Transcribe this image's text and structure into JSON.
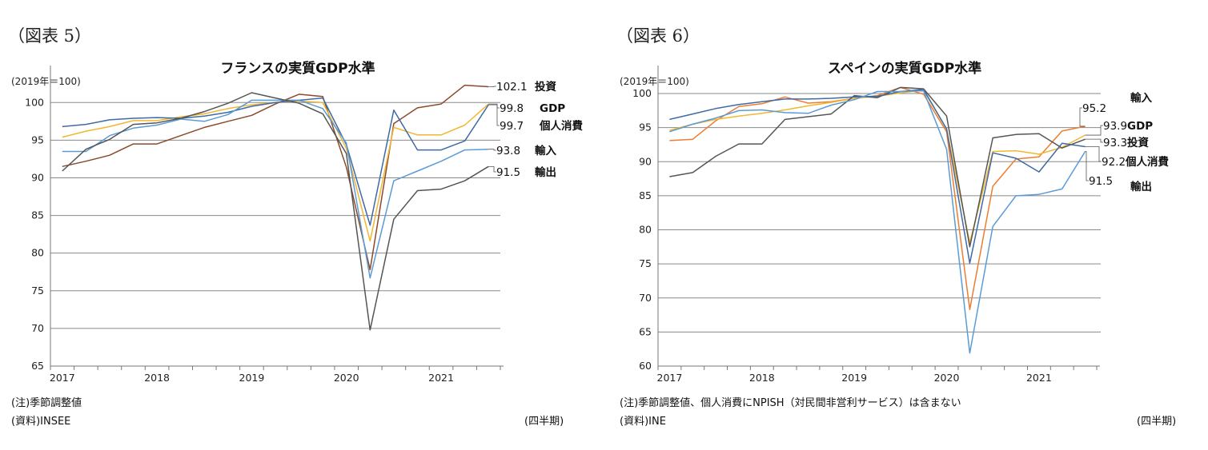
{
  "chart_data": [
    {
      "type": "line",
      "figure_label": "（図表 5）",
      "unit": "(2019年＝100)",
      "title": "フランスの実質GDP水準",
      "ylim": [
        65,
        103
      ],
      "yticks": [
        65,
        70,
        75,
        80,
        85,
        90,
        95,
        100
      ],
      "x_tick_labels": [
        "2017",
        "2018",
        "2019",
        "2020",
        "2021"
      ],
      "x": [
        "2017Q1",
        "2017Q2",
        "2017Q3",
        "2017Q4",
        "2018Q1",
        "2018Q2",
        "2018Q3",
        "2018Q4",
        "2019Q1",
        "2019Q2",
        "2019Q3",
        "2019Q4",
        "2020Q1",
        "2020Q2",
        "2020Q3",
        "2020Q4",
        "2021Q1",
        "2021Q2",
        "2021Q3"
      ],
      "grid": true,
      "series": [
        {
          "name": "投資",
          "color": "#8b4a2b",
          "values": [
            91.5,
            92.2,
            93.0,
            94.5,
            94.5,
            95.6,
            96.7,
            97.5,
            98.3,
            99.8,
            101.1,
            100.8,
            91.4,
            77.8,
            97.2,
            99.3,
            99.8,
            102.3,
            102.1
          ],
          "end_label": "102.1"
        },
        {
          "name": "GDP",
          "color": "#f2b731",
          "values": [
            95.4,
            96.2,
            96.8,
            97.6,
            97.6,
            98.1,
            98.5,
            99.2,
            99.7,
            100.0,
            100.2,
            100.0,
            93.9,
            81.6,
            96.7,
            95.7,
            95.7,
            97.0,
            99.8
          ],
          "end_label": "99.8"
        },
        {
          "name": "個人消費",
          "color": "#3f6aa6",
          "values": [
            96.8,
            97.1,
            97.7,
            97.9,
            98.0,
            97.9,
            98.2,
            98.7,
            99.5,
            100.0,
            100.3,
            100.6,
            94.4,
            83.7,
            99.0,
            93.7,
            93.7,
            94.9,
            99.7
          ],
          "end_label": "99.7"
        },
        {
          "name": "輸入",
          "color": "#5b9bd5",
          "values": [
            93.5,
            93.5,
            95.6,
            96.6,
            97.0,
            97.8,
            97.5,
            98.4,
            100.3,
            100.3,
            100.3,
            99.2,
            94.6,
            76.7,
            89.6,
            90.9,
            92.2,
            93.7,
            93.8
          ],
          "end_label": "93.8"
        },
        {
          "name": "輸出",
          "color": "#555555",
          "values": [
            90.9,
            93.8,
            95.1,
            97.1,
            97.3,
            97.9,
            98.8,
            99.9,
            101.3,
            100.6,
            99.9,
            98.5,
            93.2,
            69.8,
            84.5,
            88.3,
            88.5,
            89.6,
            91.5
          ],
          "end_label": "91.5"
        }
      ],
      "note": "(注)季節調整値",
      "source": "(資料)INSEE",
      "x_unit": "(四半期)"
    },
    {
      "type": "line",
      "figure_label": "（図表 6）",
      "unit": "(2019年＝100)",
      "title": "スペインの実質GDP水準",
      "ylim": [
        60,
        102
      ],
      "yticks": [
        60,
        65,
        70,
        75,
        80,
        85,
        90,
        95,
        100
      ],
      "x_tick_labels": [
        "2017",
        "2018",
        "2019",
        "2020",
        "2021"
      ],
      "x": [
        "2017Q1",
        "2017Q2",
        "2017Q3",
        "2017Q4",
        "2018Q1",
        "2018Q2",
        "2018Q3",
        "2018Q4",
        "2019Q1",
        "2019Q2",
        "2019Q3",
        "2019Q4",
        "2020Q1",
        "2020Q2",
        "2020Q3",
        "2020Q4",
        "2021Q1",
        "2021Q2",
        "2021Q3"
      ],
      "grid": true,
      "series": [
        {
          "name": "輸入",
          "color": "#ed7d31",
          "values": [
            93.1,
            93.3,
            96.0,
            98.1,
            98.5,
            99.5,
            98.6,
            98.8,
            99.3,
            99.7,
            100.9,
            99.9,
            94.4,
            68.3,
            86.4,
            90.4,
            90.7,
            94.5,
            95.2
          ],
          "end_label": "95.2"
        },
        {
          "name": "GDP",
          "color": "#f2b731",
          "values": [
            94.6,
            95.5,
            96.2,
            96.7,
            97.1,
            97.6,
            98.2,
            98.7,
            99.3,
            99.6,
            100.1,
            100.5,
            94.8,
            78.1,
            91.5,
            91.6,
            91.1,
            92.1,
            93.9
          ],
          "end_label": "93.9"
        },
        {
          "name": "投資",
          "color": "#555555",
          "values": [
            87.8,
            88.4,
            90.8,
            92.6,
            92.6,
            96.2,
            96.6,
            97.0,
            99.7,
            99.4,
            100.9,
            100.7,
            96.7,
            77.5,
            93.5,
            94.0,
            94.1,
            92.0,
            93.3
          ],
          "end_label": "93.3"
        },
        {
          "name": "個人消費",
          "color": "#3f6aa6",
          "values": [
            96.2,
            97.0,
            97.8,
            98.4,
            98.8,
            99.2,
            99.2,
            99.3,
            99.5,
            99.6,
            100.3,
            100.6,
            94.8,
            75.1,
            91.3,
            90.5,
            88.5,
            92.7,
            92.2
          ],
          "end_label": "92.2"
        },
        {
          "name": "輸出",
          "color": "#5b9bd5",
          "values": [
            94.4,
            95.5,
            96.4,
            97.5,
            97.6,
            97.2,
            97.1,
            98.3,
            99.1,
            100.3,
            100.3,
            100.4,
            91.8,
            61.9,
            80.5,
            85.0,
            85.2,
            86.0,
            91.5
          ],
          "end_label": "91.5"
        }
      ],
      "note": "(注)季節調整値、個人消費にNPISH（対民間非営利サービス）は含まない",
      "source": "(資料)INE",
      "x_unit": "(四半期)"
    }
  ]
}
